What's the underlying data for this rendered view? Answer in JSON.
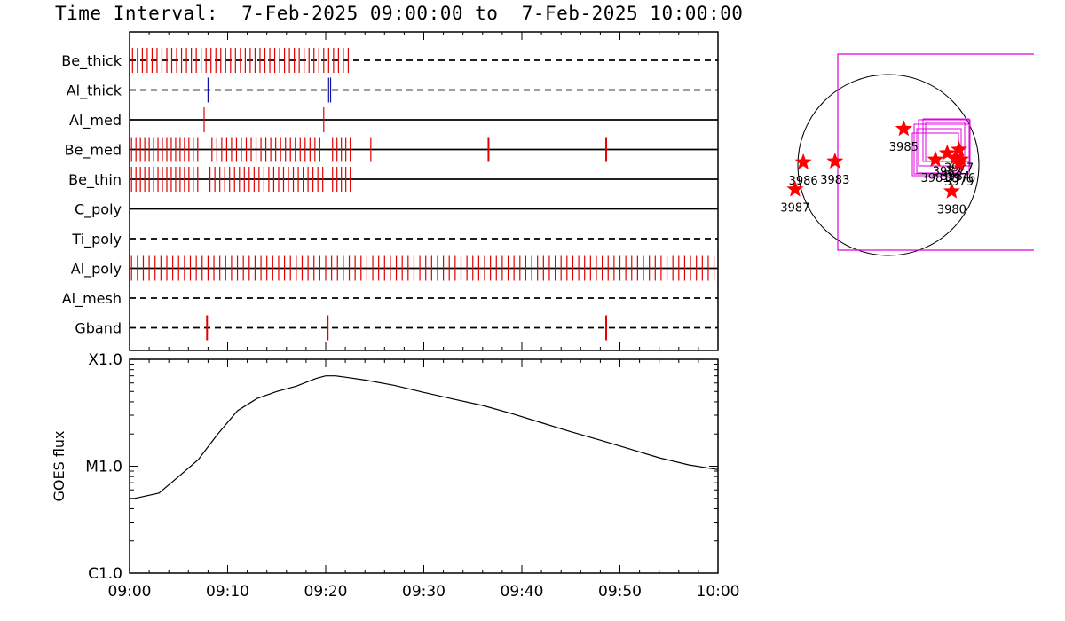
{
  "title": "Time Interval:  7-Feb-2025 09:00:00 to  7-Feb-2025 10:00:00",
  "colors": {
    "axis": "#000000",
    "red": "#e00000",
    "blue": "#1010a0",
    "magenta": "#e000e0",
    "star": "#ff0000"
  },
  "chart_data": [
    {
      "type": "line",
      "subtype": "attenuator/filter state timeline",
      "title": "",
      "x_unit": "minutes after 09:00",
      "rows": [
        {
          "name": "Be_thick",
          "style": "dashed",
          "ticks": [
            {
              "color": "red",
              "start": 0.3,
              "end": 22.4,
              "step": 0.5
            }
          ]
        },
        {
          "name": "Al_thick",
          "style": "dashed",
          "ticks": [
            {
              "color": "blue",
              "at": [
                8.0,
                20.3,
                20.5
              ]
            }
          ]
        },
        {
          "name": "Al_med",
          "style": "solid",
          "ticks": [
            {
              "color": "red",
              "at": [
                7.6,
                19.8
              ]
            }
          ]
        },
        {
          "name": "Be_med",
          "style": "solid",
          "ticks": [
            {
              "color": "red",
              "start": 0.2,
              "end": 7.0,
              "step": 0.45
            },
            {
              "color": "red",
              "start": 8.4,
              "end": 19.8,
              "step": 0.5
            },
            {
              "color": "red",
              "start": 20.7,
              "end": 22.7,
              "step": 0.45
            },
            {
              "color": "red",
              "at": [
                24.6
              ]
            },
            {
              "color": "red",
              "at": [
                36.6,
                48.6
              ],
              "bold": true
            }
          ]
        },
        {
          "name": "Be_thin",
          "style": "solid",
          "ticks": [
            {
              "color": "red",
              "start": 0.2,
              "end": 7.0,
              "step": 0.45
            },
            {
              "color": "red",
              "start": 8.2,
              "end": 19.8,
              "step": 0.5
            },
            {
              "color": "red",
              "start": 20.7,
              "end": 22.7,
              "step": 0.45
            }
          ]
        },
        {
          "name": "C_poly",
          "style": "solid",
          "ticks": []
        },
        {
          "name": "Ti_poly",
          "style": "dashed",
          "ticks": []
        },
        {
          "name": "Al_poly",
          "style": "solid",
          "ticks": [
            {
              "color": "red",
              "start": 0.2,
              "end": 60.0,
              "step": 0.6
            }
          ]
        },
        {
          "name": "Al_mesh",
          "style": "dashed",
          "ticks": []
        },
        {
          "name": "Gband",
          "style": "dashed",
          "ticks": [
            {
              "color": "red",
              "at": [
                7.9,
                20.2,
                48.6
              ],
              "bold": true
            }
          ]
        }
      ]
    },
    {
      "type": "line",
      "title": "",
      "xlabel": "",
      "ylabel": "GOES flux",
      "yscale": "log",
      "ylim": [
        1e-06,
        0.0001
      ],
      "yticks": [
        {
          "value": 1e-06,
          "label": "C1.0"
        },
        {
          "value": 1e-05,
          "label": "M1.0"
        },
        {
          "value": 0.0001,
          "label": "X1.0"
        }
      ],
      "xlim": [
        "09:00",
        "10:00"
      ],
      "xticks": [
        "09:00",
        "09:10",
        "09:20",
        "09:30",
        "09:40",
        "09:50",
        "10:00"
      ],
      "series": [
        {
          "x_minutes": [
            0,
            1,
            3,
            5,
            7,
            9,
            11,
            13,
            15,
            17,
            19,
            20,
            21,
            22,
            24,
            27,
            30,
            33,
            36,
            39,
            42,
            45,
            48,
            51,
            54,
            57,
            60
          ],
          "y": [
            4.9e-06,
            5.1e-06,
            5.6e-06,
            8e-06,
            1.15e-05,
            2e-05,
            3.3e-05,
            4.3e-05,
            5e-05,
            5.6e-05,
            6.6e-05,
            7e-05,
            7e-05,
            6.8e-05,
            6.4e-05,
            5.7e-05,
            4.9e-05,
            4.25e-05,
            3.7e-05,
            3.1e-05,
            2.55e-05,
            2.1e-05,
            1.75e-05,
            1.45e-05,
            1.2e-05,
            1.03e-05,
            9.3e-06
          ]
        }
      ]
    },
    {
      "type": "scatter",
      "subtype": "solar disk active-region map",
      "title": "",
      "regions": [
        {
          "label": "3985",
          "dx": 0.17,
          "dy": 0.4
        },
        {
          "label": "3986",
          "dx": -0.94,
          "dy": 0.03
        },
        {
          "label": "3983",
          "dx": -0.59,
          "dy": 0.04
        },
        {
          "label": "3987",
          "dx": -1.03,
          "dy": -0.27
        },
        {
          "label": "3980",
          "dx": 0.7,
          "dy": -0.29
        },
        {
          "label": "3981",
          "dx": 0.52,
          "dy": 0.06
        },
        {
          "label": "3982",
          "dx": 0.65,
          "dy": 0.13
        },
        {
          "label": "3984",
          "dx": 0.74,
          "dy": 0.08
        },
        {
          "label": "3977",
          "dx": 0.78,
          "dy": 0.17
        },
        {
          "label": "3976",
          "dx": 0.8,
          "dy": 0.06
        },
        {
          "label": "3979",
          "dx": 0.78,
          "dy": 0.02
        }
      ]
    }
  ]
}
